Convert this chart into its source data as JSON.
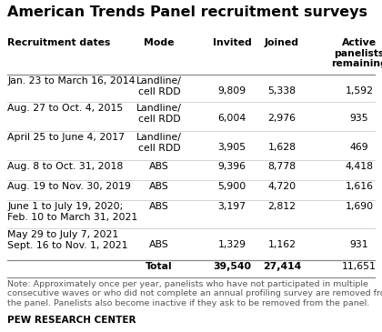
{
  "title": "American Trends Panel recruitment surveys",
  "col_headers": [
    "Recruitment dates",
    "Mode",
    "Invited",
    "Joined",
    "Active\npanelists\nremaining"
  ],
  "rows": [
    {
      "date": "Jan. 23 to March 16, 2014",
      "mode": "Landline/\ncell RDD",
      "invited": "9,809",
      "joined": "5,338",
      "active": "1,592",
      "date2": "",
      "mode_row2": false
    },
    {
      "date": "Aug. 27 to Oct. 4, 2015",
      "mode": "Landline/\ncell RDD",
      "invited": "6,004",
      "joined": "2,976",
      "active": "935",
      "date2": "",
      "mode_row2": false
    },
    {
      "date": "April 25 to June 4, 2017",
      "mode": "Landline/\ncell RDD",
      "invited": "3,905",
      "joined": "1,628",
      "active": "469",
      "date2": "",
      "mode_row2": false
    },
    {
      "date": "Aug. 8 to Oct. 31, 2018",
      "mode": "ABS",
      "invited": "9,396",
      "joined": "8,778",
      "active": "4,418",
      "date2": "",
      "mode_row2": false
    },
    {
      "date": "Aug. 19 to Nov. 30, 2019",
      "mode": "ABS",
      "invited": "5,900",
      "joined": "4,720",
      "active": "1,616",
      "date2": "",
      "mode_row2": false
    },
    {
      "date": "June 1 to July 19, 2020;",
      "mode": "ABS",
      "invited": "3,197",
      "joined": "2,812",
      "active": "1,690",
      "date2": "Feb. 10 to March 31, 2021",
      "mode_row2": false
    },
    {
      "date": "May 29 to July 7, 2021",
      "mode": "",
      "invited": "",
      "joined": "",
      "active": "",
      "date2": "Sept. 16 to Nov. 1, 2021",
      "mode_row2": true,
      "mode2": "ABS",
      "invited2": "1,329",
      "joined2": "1,162",
      "active2": "931"
    }
  ],
  "total_row": {
    "label": "Total",
    "invited": "39,540",
    "joined": "27,414",
    "active": "11,651"
  },
  "note": "Note: Approximately once per year, panelists who have not participated in multiple\nconsecutive waves or who did not complete an annual profiling survey are removed from\nthe panel. Panelists also become inactive if they ask to be removed from the panel.",
  "source": "PEW RESEARCH CENTER",
  "bg_color": "#ffffff",
  "text_color": "#000000",
  "note_color": "#555555",
  "title_fontsize": 11.5,
  "header_fontsize": 7.8,
  "body_fontsize": 7.8,
  "note_fontsize": 6.8,
  "source_fontsize": 7.5
}
